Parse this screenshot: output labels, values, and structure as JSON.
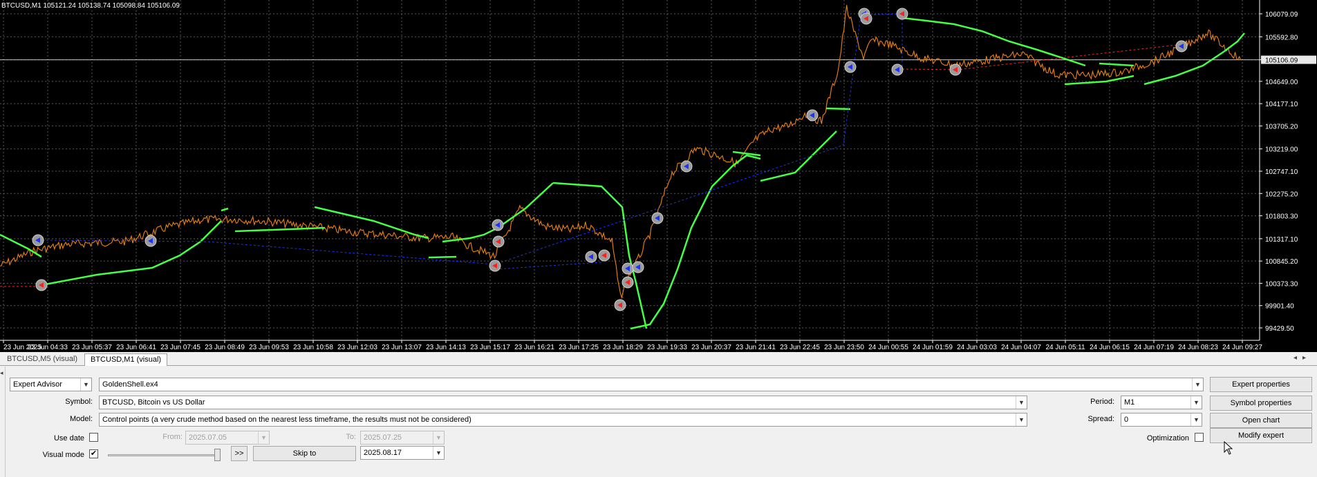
{
  "chart": {
    "ohlc_header": "BTCUSD,M1  105121.24 105138.74 105098.84 105106.09",
    "price_ticks": [
      "106079.09",
      "105592.80",
      "105106.09",
      "104649.00",
      "104177.10",
      "103705.20",
      "103219.00",
      "102747.10",
      "102275.20",
      "101803.30",
      "101317.10",
      "100845.20",
      "100373.30",
      "99901.40",
      "99429.50"
    ],
    "current_price": "105106.09",
    "time_ticks": [
      "23 Jun 2025",
      "23 Jun 04:33",
      "23 Jun 05:37",
      "23 Jun 06:41",
      "23 Jun 07:45",
      "23 Jun 08:49",
      "23 Jun 09:53",
      "23 Jun 10:58",
      "23 Jun 12:03",
      "23 Jun 13:07",
      "23 Jun 14:13",
      "23 Jun 15:17",
      "23 Jun 16:21",
      "23 Jun 17:25",
      "23 Jun 18:29",
      "23 Jun 19:33",
      "23 Jun 20:37",
      "23 Jun 21:41",
      "23 Jun 22:45",
      "23 Jun 23:50",
      "24 Jun 00:55",
      "24 Jun 01:59",
      "24 Jun 03:03",
      "24 Jun 04:07",
      "24 Jun 05:11",
      "24 Jun 06:15",
      "24 Jun 07:19",
      "24 Jun 08:23",
      "24 Jun 09:27"
    ],
    "colors": {
      "background": "#000000",
      "grid": "#5a5a5a",
      "price_line": "#ff5a00",
      "indicator": "#44ff44",
      "trade_link_buy": "#1a33ff",
      "trade_link_sell": "#ff2020"
    }
  },
  "chart_data": {
    "type": "line",
    "series": [
      {
        "x": [
          0,
          40,
          80,
          150,
          200,
          240,
          280,
          320,
          380,
          420,
          460,
          500,
          540,
          560,
          590,
          620,
          650,
          680,
          700,
          730,
          740,
          750,
          760,
          780,
          800,
          830,
          860,
          880,
          900,
          920,
          940,
          960,
          980,
          1000,
          1010,
          1020,
          1030,
          1040,
          1060,
          1100,
          1140,
          1180,
          1220,
          1260,
          1300,
          1340,
          1380,
          1420,
          1440,
          1480
        ],
        "y": [
          100740,
          101060,
          101200,
          101260,
          101560,
          101720,
          101730,
          101680,
          101560,
          101460,
          101400,
          101330,
          101350,
          101160,
          100940,
          101950,
          101580,
          101500,
          101610,
          101260,
          100080,
          100530,
          100840,
          101600,
          102670,
          103230,
          103050,
          102900,
          103400,
          103640,
          103700,
          103960,
          103800,
          104900,
          106200,
          105640,
          105160,
          105520,
          105440,
          105140,
          104990,
          105110,
          105230,
          104790,
          104780,
          104850,
          105100,
          105480,
          105680,
          105100
        ]
      }
    ]
  },
  "tabs": [
    "BTCUSD,M5 (visual)",
    "BTCUSD,M1 (visual)"
  ],
  "tester": {
    "mode": "Expert Advisor",
    "expert": "GoldenShell.ex4",
    "symbol_label": "Symbol:",
    "symbol_value": "BTCUSD, Bitcoin vs US Dollar",
    "model_label": "Model:",
    "model_value": "Control points (a very crude method based on the nearest less timeframe, the results must not be considered)",
    "use_date_label": "Use date",
    "from_label": "From:",
    "from_value": "2025.07.05",
    "to_label": "To:",
    "to_value": "2025.07.25",
    "visual_mode_label": "Visual mode",
    "visual_mode_checked": "✔",
    "speed_level": 1.0,
    "fast_forward": ">>",
    "skip_to": "Skip to",
    "skip_date": "2025.08.17",
    "period_label": "Period:",
    "period_value": "M1",
    "spread_label": "Spread:",
    "spread_value": "0",
    "optimization_label": "Optimization",
    "btn_expert_props": "Expert properties",
    "btn_symbol_props": "Symbol properties",
    "btn_open_chart": "Open chart",
    "btn_modify_expert": "Modify expert"
  }
}
